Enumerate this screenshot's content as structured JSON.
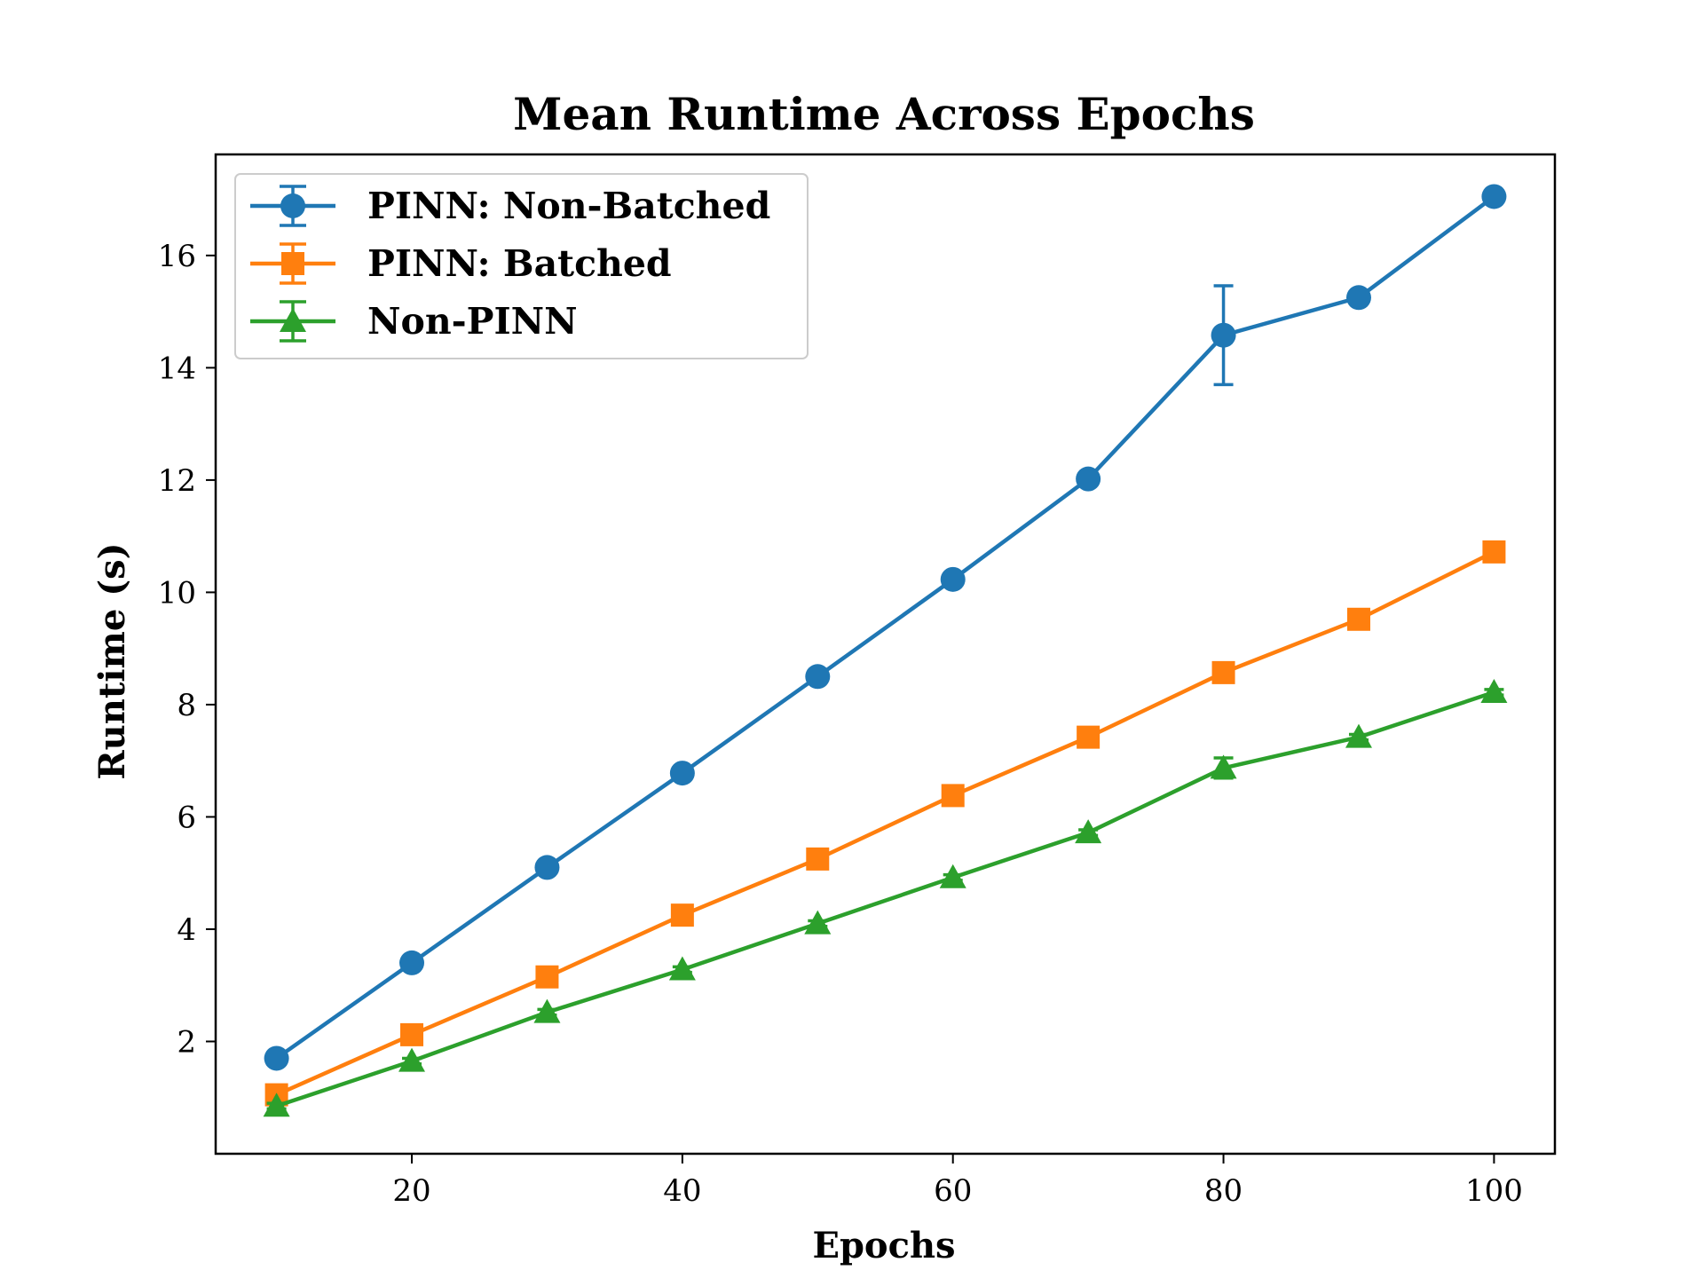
{
  "chart_data": {
    "type": "line",
    "title": "Mean Runtime Across Epochs",
    "xlabel": "Epochs",
    "ylabel": "Runtime (s)",
    "xlim": [
      5.5,
      104.5
    ],
    "ylim": [
      0.0,
      17.8
    ],
    "xticks": [
      20,
      40,
      60,
      80,
      100
    ],
    "yticks": [
      2,
      4,
      6,
      8,
      10,
      12,
      14,
      16
    ],
    "grid": false,
    "legend_position": "upper-left",
    "x": [
      10,
      20,
      30,
      40,
      50,
      60,
      70,
      80,
      90,
      100
    ],
    "series": [
      {
        "name": "PINN: Non-Batched",
        "color": "#1f77b4",
        "marker": "circle",
        "values": [
          1.7,
          3.4,
          5.1,
          6.78,
          8.5,
          10.23,
          12.02,
          14.58,
          15.25,
          17.05
        ],
        "errors": [
          0.05,
          0.05,
          0.05,
          0.05,
          0.05,
          0.05,
          0.05,
          0.88,
          0.05,
          0.05
        ]
      },
      {
        "name": "PINN: Batched",
        "color": "#ff7f0e",
        "marker": "square",
        "values": [
          1.05,
          2.12,
          3.15,
          4.25,
          5.25,
          6.38,
          7.42,
          8.57,
          9.52,
          10.72
        ],
        "errors": [
          0.05,
          0.05,
          0.05,
          0.05,
          0.05,
          0.05,
          0.05,
          0.05,
          0.05,
          0.05
        ]
      },
      {
        "name": "Non-PINN",
        "color": "#2ca02c",
        "marker": "triangle",
        "values": [
          0.85,
          1.65,
          2.52,
          3.28,
          4.1,
          4.92,
          5.72,
          6.87,
          7.42,
          8.22
        ],
        "errors": [
          0.05,
          0.05,
          0.05,
          0.05,
          0.05,
          0.05,
          0.05,
          0.18,
          0.05,
          0.05
        ]
      }
    ]
  }
}
